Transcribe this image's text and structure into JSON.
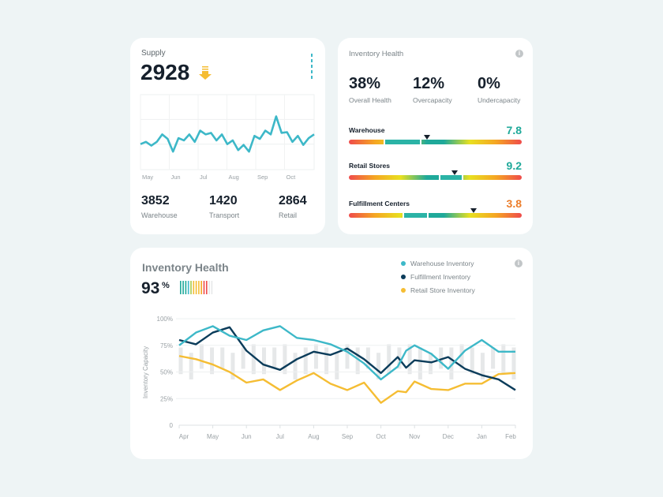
{
  "supply": {
    "title": "Supply",
    "value": "2928",
    "trend_icon": "arrow-down-icon",
    "months": [
      "May",
      "Jun",
      "Jul",
      "Aug",
      "Sep",
      "Oct"
    ],
    "series": [
      34,
      37,
      32,
      37,
      47,
      41,
      24,
      42,
      39,
      47,
      37,
      52,
      47,
      49,
      39,
      47,
      34,
      39,
      26,
      33,
      24,
      45,
      41,
      52,
      47,
      71,
      49,
      50,
      37,
      45,
      33,
      42,
      47
    ],
    "stats": [
      {
        "value": "3852",
        "label": "Warehouse"
      },
      {
        "value": "1420",
        "label": "Transport"
      },
      {
        "value": "2864",
        "label": "Retail"
      }
    ]
  },
  "health": {
    "title": "Inventory Health",
    "kpis": [
      {
        "value": "38%",
        "label": "Overall Health"
      },
      {
        "value": "12%",
        "label": "Overcapacity"
      },
      {
        "value": "0%",
        "label": "Undercapacity"
      }
    ],
    "rows": [
      {
        "label": "Warehouse",
        "score": "7.8",
        "color": "#1fa99a",
        "marker": 0.45
      },
      {
        "label": "Retail Stores",
        "score": "9.2",
        "color": "#1fa99a",
        "marker": 0.61
      },
      {
        "label": "Fulfillment Centers",
        "score": "3.8",
        "color": "#ec7d2a",
        "marker": 0.72
      }
    ]
  },
  "chart_data": {
    "type": "line",
    "title": "Inventory Health",
    "headline_value": "93",
    "headline_unit": "%",
    "ylabel": "Inventory Capacity",
    "ylim": [
      0,
      100
    ],
    "yticks": [
      "0",
      "25%",
      "50%",
      "75%",
      "100%"
    ],
    "x_labels": [
      "Apr",
      "May",
      "Jun",
      "Jul",
      "Aug",
      "Sep",
      "Oct",
      "Nov",
      "Dec",
      "Jan",
      "Feb"
    ],
    "series": [
      {
        "name": "Warehouse Inventory",
        "color": "#3db8c8",
        "points": [
          [
            0,
            75
          ],
          [
            0.5,
            87
          ],
          [
            1,
            93
          ],
          [
            1.5,
            84
          ],
          [
            2,
            80
          ],
          [
            2.5,
            89
          ],
          [
            3,
            93
          ],
          [
            3.5,
            82
          ],
          [
            4,
            80
          ],
          [
            4.5,
            76
          ],
          [
            5,
            69
          ],
          [
            5.5,
            58
          ],
          [
            6,
            43
          ],
          [
            6.5,
            55
          ],
          [
            6.75,
            70
          ],
          [
            7,
            75
          ],
          [
            7.5,
            67
          ],
          [
            8,
            53
          ],
          [
            8.5,
            70
          ],
          [
            9,
            80
          ],
          [
            9.5,
            69
          ],
          [
            10,
            69
          ]
        ]
      },
      {
        "name": "Fulfillment Inventory",
        "color": "#0b3c5a",
        "points": [
          [
            0,
            80
          ],
          [
            0.5,
            76
          ],
          [
            1,
            87
          ],
          [
            1.5,
            92
          ],
          [
            2,
            70
          ],
          [
            2.5,
            57
          ],
          [
            3,
            52
          ],
          [
            3.5,
            62
          ],
          [
            4,
            69
          ],
          [
            4.5,
            66
          ],
          [
            5,
            72
          ],
          [
            5.5,
            62
          ],
          [
            6,
            49
          ],
          [
            6.5,
            64
          ],
          [
            6.75,
            54
          ],
          [
            7,
            61
          ],
          [
            7.5,
            59
          ],
          [
            8,
            64
          ],
          [
            8.5,
            53
          ],
          [
            9,
            47
          ],
          [
            9.5,
            43
          ],
          [
            10,
            33
          ]
        ]
      },
      {
        "name": "Retail Store Inventory",
        "color": "#f5bd33",
        "points": [
          [
            0,
            65
          ],
          [
            0.5,
            62
          ],
          [
            1,
            57
          ],
          [
            1.5,
            50
          ],
          [
            2,
            40
          ],
          [
            2.5,
            43
          ],
          [
            3,
            33
          ],
          [
            3.5,
            42
          ],
          [
            4,
            49
          ],
          [
            4.5,
            39
          ],
          [
            5,
            33
          ],
          [
            5.5,
            40
          ],
          [
            6,
            21
          ],
          [
            6.5,
            32
          ],
          [
            6.75,
            31
          ],
          [
            7,
            41
          ],
          [
            7.5,
            34
          ],
          [
            8,
            33
          ],
          [
            8.5,
            39
          ],
          [
            9,
            39
          ],
          [
            9.5,
            48
          ],
          [
            10,
            49
          ]
        ]
      }
    ],
    "range_bars": [
      [
        48,
        73
      ],
      [
        43,
        68
      ],
      [
        53,
        76
      ],
      [
        48,
        73
      ],
      [
        53,
        73
      ],
      [
        43,
        68
      ],
      [
        53,
        73
      ],
      [
        48,
        76
      ],
      [
        48,
        73
      ],
      [
        53,
        73
      ],
      [
        48,
        76
      ],
      [
        43,
        68
      ],
      [
        48,
        73
      ],
      [
        53,
        76
      ],
      [
        48,
        73
      ],
      [
        43,
        68
      ],
      [
        53,
        76
      ],
      [
        48,
        73
      ],
      [
        53,
        73
      ],
      [
        43,
        68
      ],
      [
        48,
        76
      ],
      [
        53,
        73
      ],
      [
        48,
        76
      ],
      [
        43,
        73
      ],
      [
        48,
        68
      ],
      [
        53,
        73
      ],
      [
        43,
        73
      ],
      [
        53,
        76
      ],
      [
        48,
        73
      ],
      [
        43,
        68
      ],
      [
        53,
        73
      ],
      [
        48,
        76
      ],
      [
        43,
        73
      ]
    ]
  }
}
